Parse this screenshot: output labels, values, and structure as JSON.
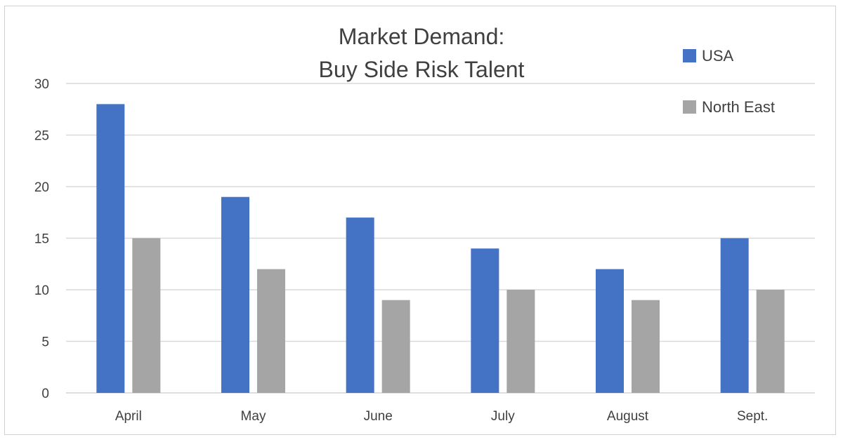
{
  "chart_data": {
    "type": "bar",
    "title": [
      "Market Demand:",
      "Buy Side Risk Talent"
    ],
    "categories": [
      "April",
      "May",
      "June",
      "July",
      "August",
      "Sept."
    ],
    "series": [
      {
        "name": "USA",
        "color": "#4472C4",
        "values": [
          28,
          19,
          17,
          14,
          12,
          15
        ]
      },
      {
        "name": "North East",
        "color": "#A5A5A5",
        "values": [
          15,
          12,
          9,
          10,
          9,
          10
        ]
      }
    ],
    "ylim": [
      0,
      30
    ],
    "yticks": [
      0,
      5,
      10,
      15,
      20,
      25,
      30
    ],
    "grid": true,
    "legend": "top-right"
  }
}
